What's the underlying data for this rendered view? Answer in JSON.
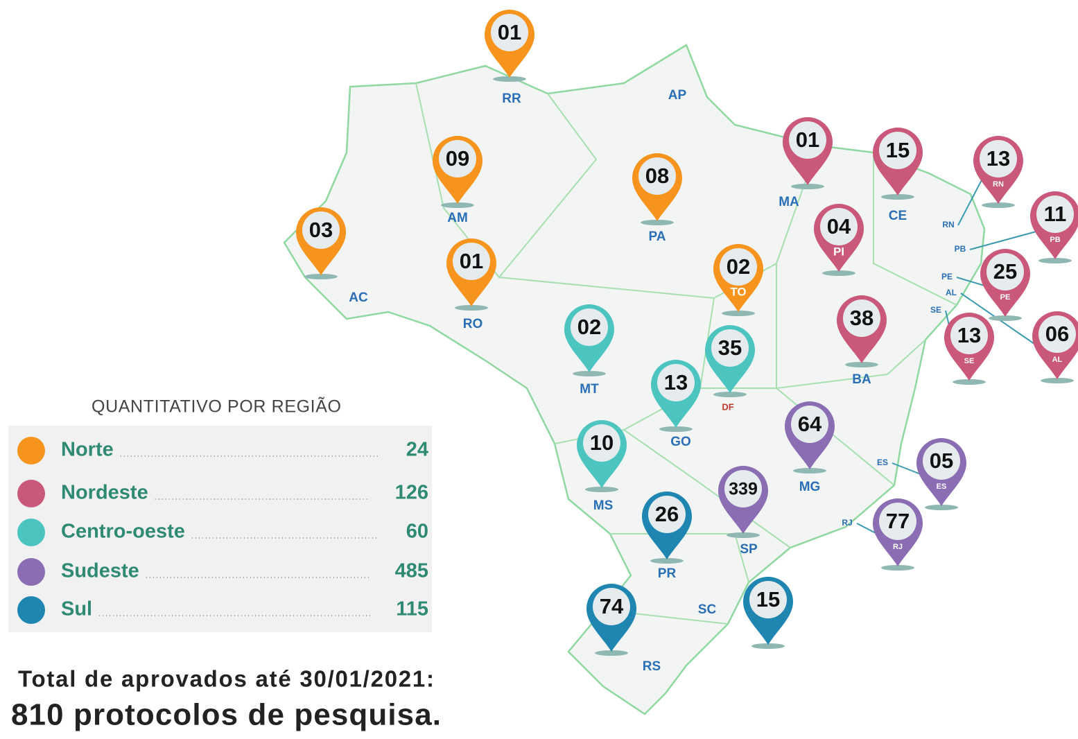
{
  "legend": {
    "title": "QUANTITATIVO POR REGIÃO",
    "items": [
      {
        "name": "Norte",
        "value": "24",
        "color": "#f7941d"
      },
      {
        "name": "Nordeste",
        "value": "126",
        "color": "#c9587a"
      },
      {
        "name": "Centro-oeste",
        "value": "60",
        "color": "#4cc4c0"
      },
      {
        "name": "Sudeste",
        "value": "485",
        "color": "#8b6db3"
      },
      {
        "name": "Sul",
        "value": "115",
        "color": "#1e86b0"
      }
    ]
  },
  "pins": [
    {
      "count": "01",
      "state": "RR",
      "region": "Norte"
    },
    {
      "count": "09",
      "state": "AM",
      "region": "Norte"
    },
    {
      "count": "03",
      "state": "AC",
      "region": "Norte"
    },
    {
      "count": "01",
      "state": "RO",
      "region": "Norte"
    },
    {
      "count": "08",
      "state": "PA",
      "region": "Norte"
    },
    {
      "count": "02",
      "state": "TO",
      "region": "Norte"
    },
    {
      "count": "01",
      "state": "MA",
      "region": "Nordeste"
    },
    {
      "count": "15",
      "state": "CE",
      "region": "Nordeste"
    },
    {
      "count": "04",
      "state": "PI",
      "region": "Nordeste"
    },
    {
      "count": "13",
      "state": "RN",
      "region": "Nordeste"
    },
    {
      "count": "11",
      "state": "PB",
      "region": "Nordeste"
    },
    {
      "count": "25",
      "state": "PE",
      "region": "Nordeste"
    },
    {
      "count": "06",
      "state": "AL",
      "region": "Nordeste"
    },
    {
      "count": "13",
      "state": "SE",
      "region": "Nordeste"
    },
    {
      "count": "38",
      "state": "BA",
      "region": "Nordeste"
    },
    {
      "count": "02",
      "state": "MT",
      "region": "Centro-oeste"
    },
    {
      "count": "35",
      "state": "DF",
      "region": "Centro-oeste"
    },
    {
      "count": "13",
      "state": "GO",
      "region": "Centro-oeste"
    },
    {
      "count": "10",
      "state": "MS",
      "region": "Centro-oeste"
    },
    {
      "count": "64",
      "state": "MG",
      "region": "Sudeste"
    },
    {
      "count": "339",
      "state": "SP",
      "region": "Sudeste"
    },
    {
      "count": "05",
      "state": "ES",
      "region": "Sudeste"
    },
    {
      "count": "77",
      "state": "RJ",
      "region": "Sudeste"
    },
    {
      "count": "26",
      "state": "PR",
      "region": "Sul"
    },
    {
      "count": "74",
      "state": "RS",
      "region": "Sul"
    },
    {
      "count": "15",
      "state": "SC",
      "region": "Sul"
    }
  ],
  "unpinned_states": [
    "AP"
  ],
  "total": {
    "line1": "Total de aprovados até 30/01/2021:",
    "line2": "810 protocolos de pesquisa."
  }
}
